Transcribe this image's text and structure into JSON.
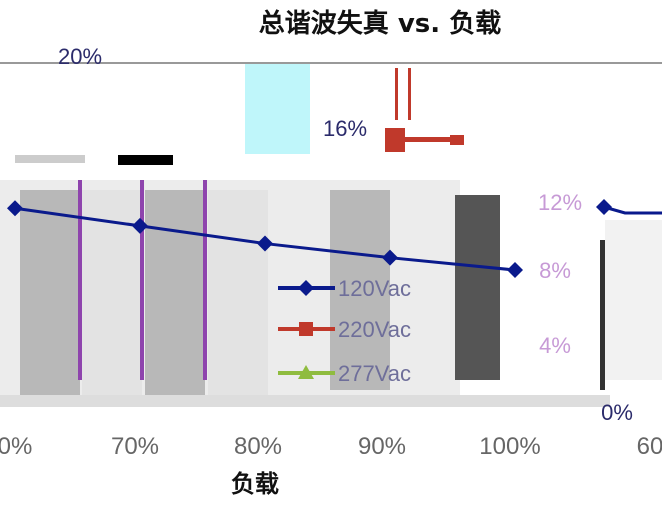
{
  "chart_data": {
    "type": "line",
    "title": "总谐波失真 vs. 负载",
    "xlabel": "负载",
    "ylabel": "",
    "x_tick_labels": [
      "0%",
      "70%",
      "80%",
      "90%",
      "100%",
      "60"
    ],
    "y_tick_labels": [
      "20%",
      "16%",
      "12%",
      "8%",
      "4%",
      "0%"
    ],
    "ylim": [
      0,
      20
    ],
    "legend_position": "center-right",
    "series": [
      {
        "name": "120Vac",
        "color": "#0a1a8c",
        "marker": "diamond",
        "x": [
          "60%",
          "70%",
          "80%",
          "90%",
          "100%"
        ],
        "values": [
          11.6,
          10.6,
          9.6,
          8.8,
          8.1
        ]
      },
      {
        "name": "220Vac",
        "color": "#c0392b",
        "marker": "square",
        "x": [],
        "values": []
      },
      {
        "name": "277Vac",
        "color": "#8fbc3f",
        "marker": "triangle",
        "x": [],
        "values": []
      }
    ]
  }
}
